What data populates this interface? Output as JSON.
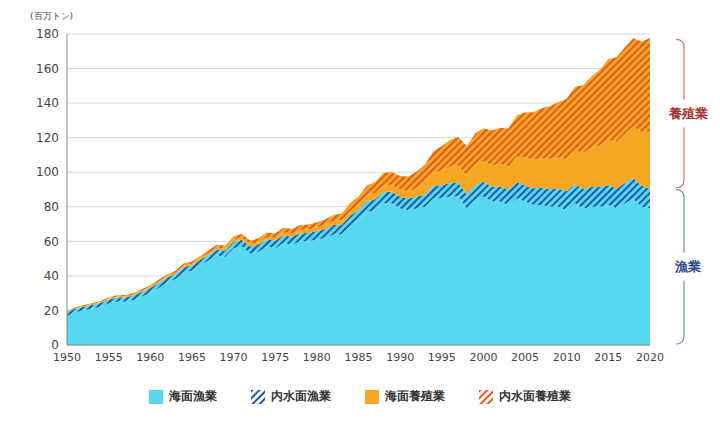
{
  "chart_data": {
    "type": "area",
    "stacked": true,
    "grid": true,
    "legend": "bottom",
    "ylabel": "(百万トン)",
    "x": [
      1950,
      1951,
      1952,
      1953,
      1954,
      1955,
      1956,
      1957,
      1958,
      1959,
      1960,
      1961,
      1962,
      1963,
      1964,
      1965,
      1966,
      1967,
      1968,
      1969,
      1970,
      1971,
      1972,
      1973,
      1974,
      1975,
      1976,
      1977,
      1978,
      1979,
      1980,
      1981,
      1982,
      1983,
      1984,
      1985,
      1986,
      1987,
      1988,
      1989,
      1990,
      1991,
      1992,
      1993,
      1994,
      1995,
      1996,
      1997,
      1998,
      1999,
      2000,
      2001,
      2002,
      2003,
      2004,
      2005,
      2006,
      2007,
      2008,
      2009,
      2010,
      2011,
      2012,
      2013,
      2014,
      2015,
      2016,
      2017,
      2018,
      2019,
      2020
    ],
    "xlim": [
      1950,
      2020
    ],
    "xticks": [
      1950,
      1955,
      1960,
      1965,
      1970,
      1975,
      1980,
      1985,
      1990,
      1995,
      2000,
      2005,
      2010,
      2015,
      2020
    ],
    "ylim": [
      0,
      180
    ],
    "yticks": [
      0,
      20,
      40,
      60,
      80,
      100,
      120,
      140,
      160,
      180
    ],
    "series": [
      {
        "name": "海面漁業",
        "color": "#56d8f1",
        "values": [
          17,
          19,
          20,
          21,
          22,
          24,
          25,
          25,
          26,
          28,
          30,
          33,
          36,
          38,
          42,
          43,
          46,
          49,
          52,
          51,
          56,
          57,
          53,
          54,
          57,
          56,
          59,
          58,
          60,
          60,
          61,
          62,
          64,
          64,
          69,
          72,
          77,
          78,
          82,
          82,
          79,
          78,
          79,
          80,
          85,
          85,
          86,
          86,
          79,
          84,
          86,
          83,
          83,
          81,
          85,
          83,
          81,
          81,
          80,
          80,
          78,
          82,
          79,
          80,
          80,
          81,
          79,
          82,
          84.5,
          80,
          79
        ]
      },
      {
        "name": "内水面漁業",
        "color": "#1e5aa8",
        "line_style": "hatched",
        "values": [
          2.0,
          2.1,
          2.2,
          2.2,
          2.3,
          2.4,
          2.5,
          2.6,
          2.7,
          2.8,
          3.0,
          3.0,
          3.0,
          3.0,
          3.1,
          3.1,
          3.2,
          3.3,
          3.4,
          3.6,
          3.8,
          3.9,
          4.0,
          4.1,
          4.2,
          4.4,
          4.5,
          4.6,
          4.7,
          4.8,
          5.0,
          5.2,
          5.4,
          5.6,
          5.8,
          6.0,
          6.2,
          6.4,
          6.6,
          6.7,
          6.8,
          6.8,
          6.9,
          7.0,
          7.2,
          7.5,
          7.7,
          7.9,
          8.1,
          8.3,
          8.5,
          8.6,
          8.7,
          8.8,
          9.0,
          9.5,
          9.7,
          10.0,
          10.3,
          10.5,
          11.0,
          11.0,
          11.3,
          11.5,
          11.4,
          11.5,
          11.6,
          11.8,
          12.0,
          12.1,
          11.5
        ]
      },
      {
        "name": "海面養殖業",
        "color": "#f5a623",
        "values": [
          0.3,
          0.3,
          0.3,
          0.4,
          0.4,
          0.4,
          0.5,
          0.5,
          0.5,
          0.6,
          0.6,
          0.7,
          0.7,
          0.8,
          0.8,
          0.9,
          0.9,
          1.0,
          1.0,
          1.1,
          1.2,
          1.3,
          1.3,
          1.4,
          1.5,
          1.6,
          1.7,
          1.8,
          1.9,
          2.0,
          2.1,
          2.2,
          2.4,
          2.6,
          2.8,
          3.0,
          3.3,
          3.6,
          3.9,
          4.0,
          4.0,
          4.2,
          5.0,
          6.5,
          7.5,
          8.5,
          9.5,
          10.0,
          10.5,
          11.5,
          12.0,
          12.5,
          13.0,
          13.5,
          15.0,
          16.0,
          16.5,
          17.0,
          17.5,
          18.0,
          18.5,
          19.5,
          21.0,
          22.5,
          24.0,
          26.0,
          27.0,
          28.5,
          30.0,
          31.0,
          33.0
        ]
      },
      {
        "name": "内水面養殖業",
        "color": "#e05a22",
        "line_style": "hatched",
        "values": [
          0.5,
          0.5,
          0.6,
          0.6,
          0.7,
          0.7,
          0.8,
          0.8,
          0.9,
          0.9,
          1.0,
          1.0,
          1.1,
          1.1,
          1.2,
          1.3,
          1.4,
          1.5,
          1.6,
          1.8,
          2.0,
          2.1,
          2.2,
          2.3,
          2.4,
          2.5,
          2.6,
          2.7,
          2.8,
          2.9,
          3.0,
          3.2,
          3.5,
          3.9,
          4.4,
          5.0,
          5.7,
          6.3,
          7.0,
          7.5,
          8.0,
          8.5,
          9.5,
          11.0,
          12.5,
          14.0,
          15.5,
          16.5,
          17.5,
          18.5,
          19.0,
          20.0,
          21.0,
          22.0,
          24.0,
          26.0,
          27.5,
          29.0,
          30.5,
          32.0,
          35.0,
          37.0,
          39.0,
          41.5,
          44.0,
          47.0,
          49.0,
          50.0,
          51.0,
          52.5,
          54.0
        ]
      }
    ],
    "annotations": [
      {
        "text": "養殖業",
        "series": [
          "海面養殖業",
          "内水面養殖業"
        ]
      },
      {
        "text": "漁業",
        "series": [
          "海面漁業",
          "内水面漁業"
        ]
      }
    ]
  }
}
